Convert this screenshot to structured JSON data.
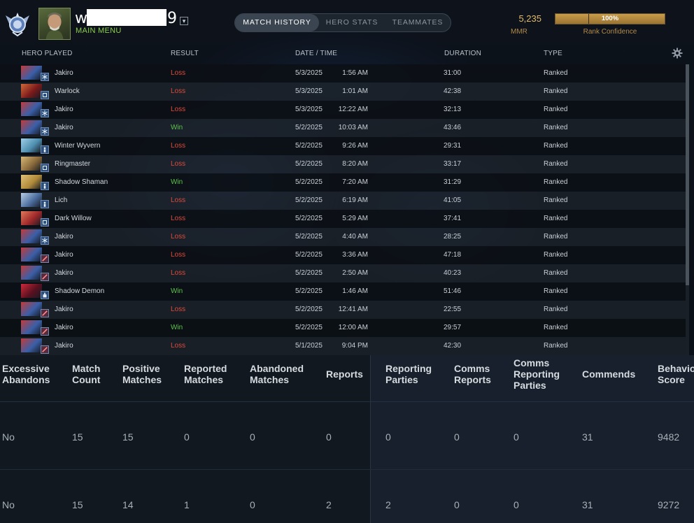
{
  "header": {
    "username_start": "w",
    "username_end": "9",
    "dropdown_icon": "caret-down",
    "main_menu": "MAIN MENU",
    "tabs": [
      "MATCH HISTORY",
      "HERO STATS",
      "TEAMMATES"
    ],
    "active_tab": "MATCH HISTORY",
    "mmr_value": "5,235",
    "mmr_label": "MMR",
    "rank_confidence_value": "100%",
    "rank_confidence_fraction": 1.0,
    "rank_confidence_label": "Rank Confidence"
  },
  "columns": {
    "hero": "HERO PLAYED",
    "result": "RESULT",
    "datetime": "DATE / TIME",
    "duration": "DURATION",
    "type": "TYPE"
  },
  "matches": [
    {
      "hero": "Jakiro",
      "result": "Loss",
      "date": "5/3/2025",
      "time": "1:56 AM",
      "duration": "31:00",
      "type": "Ranked",
      "badge": "snowflake"
    },
    {
      "hero": "Warlock",
      "result": "Loss",
      "date": "5/3/2025",
      "time": "1:01 AM",
      "duration": "42:38",
      "type": "Ranked",
      "badge": "square"
    },
    {
      "hero": "Jakiro",
      "result": "Loss",
      "date": "5/3/2025",
      "time": "12:22 AM",
      "duration": "32:13",
      "type": "Ranked",
      "badge": "snowflake"
    },
    {
      "hero": "Jakiro",
      "result": "Win",
      "date": "5/2/2025",
      "time": "10:03 AM",
      "duration": "43:46",
      "type": "Ranked",
      "badge": "snowflake"
    },
    {
      "hero": "Winter Wyvern",
      "result": "Loss",
      "date": "5/2/2025",
      "time": "9:26 AM",
      "duration": "29:31",
      "type": "Ranked",
      "badge": "figure"
    },
    {
      "hero": "Ringmaster",
      "result": "Loss",
      "date": "5/2/2025",
      "time": "8:20 AM",
      "duration": "33:17",
      "type": "Ranked",
      "badge": "square"
    },
    {
      "hero": "Shadow Shaman",
      "result": "Win",
      "date": "5/2/2025",
      "time": "7:20 AM",
      "duration": "31:29",
      "type": "Ranked",
      "badge": "figure"
    },
    {
      "hero": "Lich",
      "result": "Loss",
      "date": "5/2/2025",
      "time": "6:19 AM",
      "duration": "41:05",
      "type": "Ranked",
      "badge": "figure"
    },
    {
      "hero": "Dark Willow",
      "result": "Loss",
      "date": "5/2/2025",
      "time": "5:29 AM",
      "duration": "37:41",
      "type": "Ranked",
      "badge": "square"
    },
    {
      "hero": "Jakiro",
      "result": "Loss",
      "date": "5/2/2025",
      "time": "4:40 AM",
      "duration": "28:25",
      "type": "Ranked",
      "badge": "snowflake"
    },
    {
      "hero": "Jakiro",
      "result": "Loss",
      "date": "5/2/2025",
      "time": "3:36 AM",
      "duration": "47:18",
      "type": "Ranked",
      "badge": "slash"
    },
    {
      "hero": "Jakiro",
      "result": "Loss",
      "date": "5/2/2025",
      "time": "2:50 AM",
      "duration": "40:23",
      "type": "Ranked",
      "badge": "slash"
    },
    {
      "hero": "Shadow Demon",
      "result": "Win",
      "date": "5/2/2025",
      "time": "1:46 AM",
      "duration": "51:46",
      "type": "Ranked",
      "badge": "hand"
    },
    {
      "hero": "Jakiro",
      "result": "Loss",
      "date": "5/2/2025",
      "time": "12:41 AM",
      "duration": "22:55",
      "type": "Ranked",
      "badge": "slash"
    },
    {
      "hero": "Jakiro",
      "result": "Win",
      "date": "5/2/2025",
      "time": "12:00 AM",
      "duration": "29:57",
      "type": "Ranked",
      "badge": "slash"
    },
    {
      "hero": "Jakiro",
      "result": "Loss",
      "date": "5/1/2025",
      "time": "9:04 PM",
      "duration": "42:30",
      "type": "Ranked",
      "badge": "slash"
    }
  ],
  "conduct": {
    "headers": [
      [
        "Excessive",
        "Abandons"
      ],
      [
        "Match",
        "Count"
      ],
      [
        "Positive",
        "Matches"
      ],
      [
        "Reported",
        "Matches"
      ],
      [
        "Abandoned",
        "Matches"
      ],
      [
        "Reports"
      ],
      [
        "Reporting",
        "Parties"
      ],
      [
        "Comms",
        "Reports"
      ],
      [
        "Comms",
        "Reporting",
        "Parties"
      ],
      [
        "Commends"
      ],
      [
        "Behavior",
        "Score"
      ]
    ],
    "rows": [
      [
        "No",
        "15",
        "15",
        "0",
        "0",
        "0",
        "0",
        "0",
        "0",
        "31",
        "9482"
      ],
      [
        "No",
        "15",
        "14",
        "1",
        "0",
        "2",
        "2",
        "0",
        "0",
        "31",
        "9272"
      ]
    ]
  },
  "colors": {
    "loss": "#e04a3a",
    "win": "#5ec24a",
    "gold": "#e3b96a",
    "main_menu": "#8ccf4a"
  }
}
